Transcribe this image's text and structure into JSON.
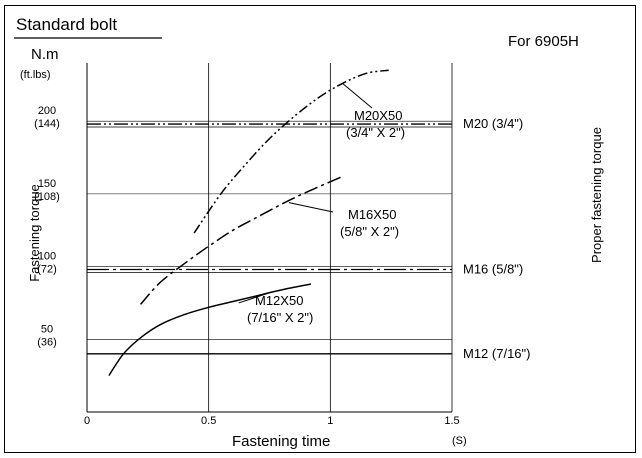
{
  "chart_data": {
    "type": "line",
    "title": "Standard bolt",
    "subtitle": "For 6905H",
    "xlabel": "Fastening time",
    "x_unit": "(S)",
    "ylabel": "Fastening torque",
    "y_unit_primary": "N.m",
    "y_unit_secondary": "(ft.lbs)",
    "right_label": "Proper fastening torque",
    "xlim": [
      0,
      1.5
    ],
    "ylim": [
      0,
      240
    ],
    "x_ticks": [
      {
        "value": 0,
        "label": "0"
      },
      {
        "value": 0.5,
        "label": "0.5"
      },
      {
        "value": 1,
        "label": "1"
      },
      {
        "value": 1.5,
        "label": "1.5"
      }
    ],
    "y_ticks": [
      {
        "value": 200,
        "label": "200",
        "sublabel": "(144)"
      },
      {
        "value": 150,
        "label": "150",
        "sublabel": "(108)"
      },
      {
        "value": 100,
        "label": "100",
        "sublabel": "(72)"
      },
      {
        "value": 50,
        "label": "50",
        "sublabel": "(36)"
      }
    ],
    "series": [
      {
        "name": "M12X50",
        "name2": "(7/16\" X 2\")",
        "style": "solid",
        "x": [
          0.09,
          0.15,
          0.22,
          0.3,
          0.4,
          0.5,
          0.6,
          0.7,
          0.8,
          0.92
        ],
        "y": [
          25,
          40,
          51,
          60,
          67,
          72,
          76,
          80,
          84,
          88
        ]
      },
      {
        "name": "M16X50",
        "name2": "(5/8\" X 2\")",
        "style": "dashdot",
        "x": [
          0.22,
          0.3,
          0.4,
          0.5,
          0.6,
          0.7,
          0.8,
          0.9,
          1.05
        ],
        "y": [
          74,
          89,
          102,
          114,
          125,
          134,
          143,
          151,
          162
        ]
      },
      {
        "name": "M20X50",
        "name2": "(3/4\" X 2\")",
        "style": "dashdotdot",
        "x": [
          0.44,
          0.55,
          0.65,
          0.75,
          0.85,
          0.95,
          1.05,
          1.15,
          1.24
        ],
        "y": [
          123,
          150,
          170,
          188,
          203,
          216,
          226,
          233,
          235
        ]
      }
    ],
    "reference_lines": [
      {
        "name": "M20 (3/4\")",
        "y": 198,
        "y2": 196,
        "style": "dotted-double"
      },
      {
        "name": "M16 (5/8\")",
        "y": 98,
        "y2": 96,
        "style": "dashdot-double"
      },
      {
        "name": "M12 (7/16\")",
        "y": 40,
        "style": "solid"
      }
    ],
    "grid": true
  }
}
